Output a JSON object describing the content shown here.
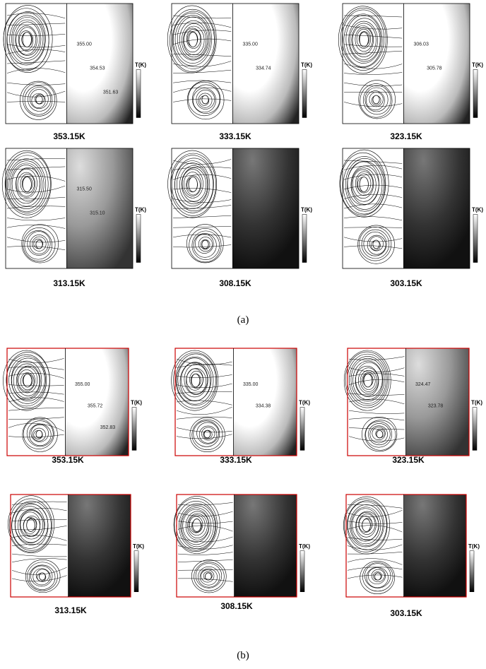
{
  "figure_a": {
    "label": "(a)",
    "legend_title": "T(K)",
    "panels": [
      {
        "caption": "353.15K",
        "contour_labels": [
          "355.00",
          "354.53",
          "351.63"
        ]
      },
      {
        "caption": "333.15K",
        "contour_labels": [
          "335.00",
          "334.74"
        ]
      },
      {
        "caption": "323.15K",
        "contour_labels": [
          "306.03",
          "305.78"
        ]
      },
      {
        "caption": "313.15K",
        "contour_labels": [
          "315.50",
          "315.10"
        ]
      },
      {
        "caption": "308.15K",
        "contour_labels": []
      },
      {
        "caption": "303.15K",
        "contour_labels": []
      }
    ]
  },
  "figure_b": {
    "label": "(b)",
    "legend_title": "T(K)",
    "panels": [
      {
        "caption": "353.15K",
        "contour_labels": [
          "355.00",
          "355.72",
          "352.83"
        ]
      },
      {
        "caption": "333.15K",
        "contour_labels": [
          "335.00",
          "334.38"
        ]
      },
      {
        "caption": "323.15K",
        "contour_labels": [
          "324.47",
          "323.78"
        ]
      },
      {
        "caption": "313.15K",
        "contour_labels": []
      },
      {
        "caption": "308.15K",
        "contour_labels": []
      },
      {
        "caption": "303.15K",
        "contour_labels": []
      }
    ]
  }
}
